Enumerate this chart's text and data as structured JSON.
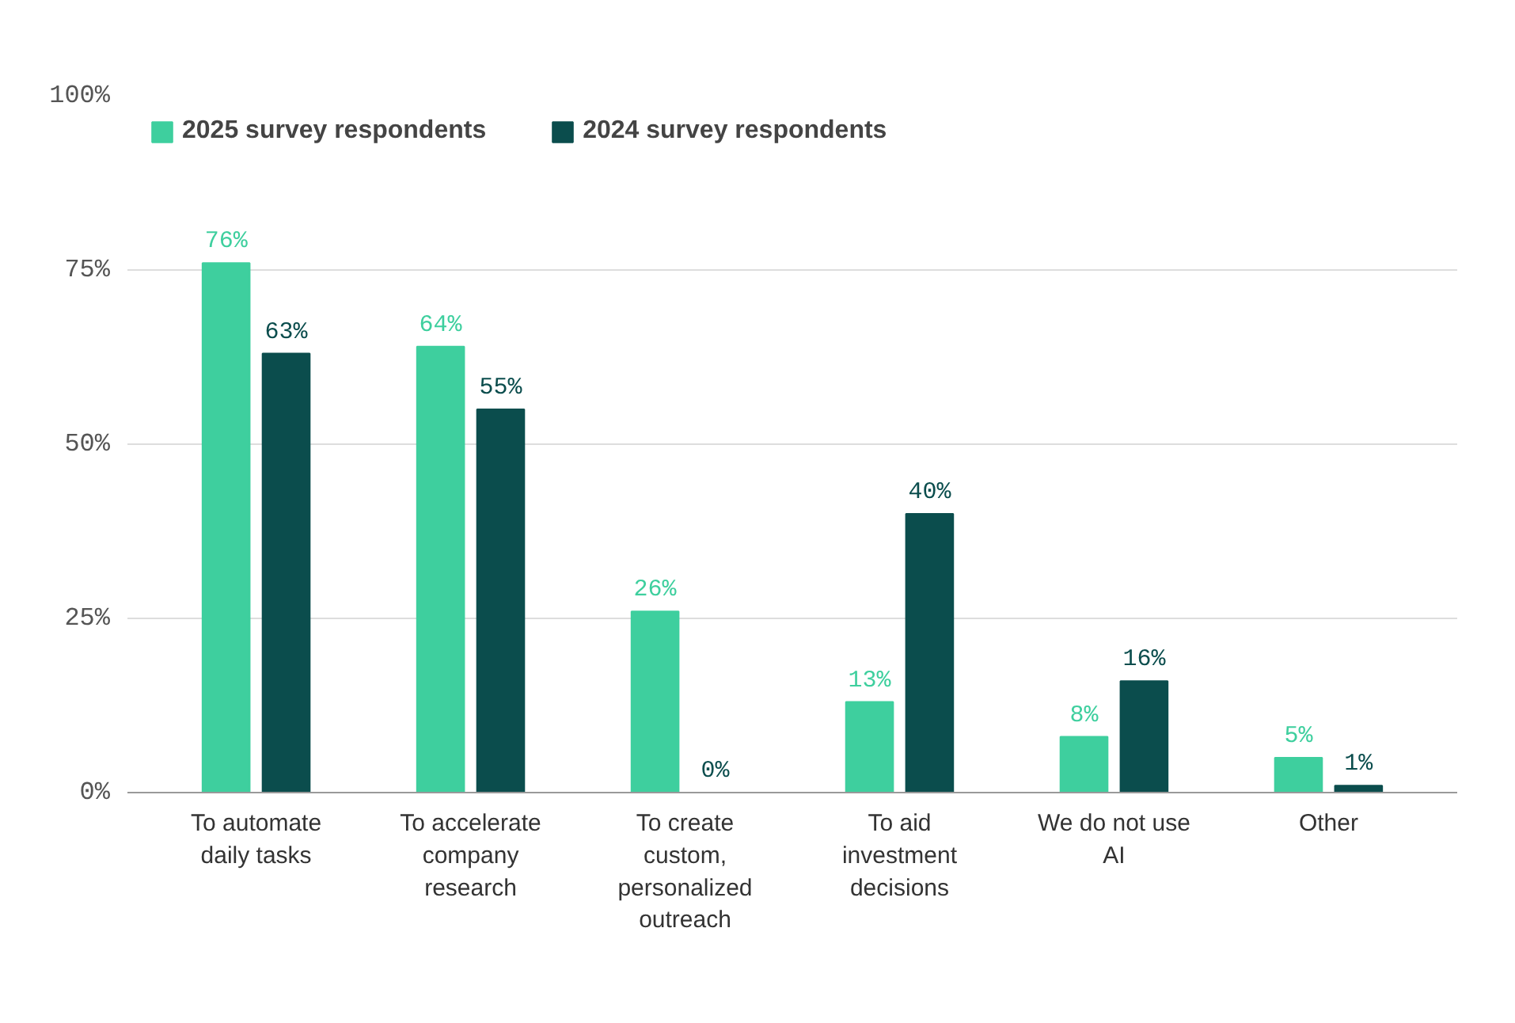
{
  "chart_data": {
    "type": "bar",
    "categories": [
      "To automate daily tasks",
      "To accelerate company research",
      "To create custom, personalized outreach",
      "To aid investment decisions",
      "We do not use AI",
      "Other"
    ],
    "series": [
      {
        "name": "2025 survey respondents",
        "color": "#3ecf9e",
        "values": [
          76,
          64,
          26,
          13,
          8,
          5
        ],
        "value_labels": [
          "76%",
          "64%",
          "26%",
          "13%",
          "8%",
          "5%"
        ]
      },
      {
        "name": "2024 survey respondents",
        "color": "#0b4d4d",
        "values": [
          63,
          55,
          0,
          40,
          16,
          1
        ],
        "value_labels": [
          "63%",
          "55%",
          "0%",
          "40%",
          "16%",
          "1%"
        ]
      }
    ],
    "ylim": [
      0,
      100
    ],
    "yticks": [
      {
        "value": 0,
        "label": "0%"
      },
      {
        "value": 25,
        "label": "25%"
      },
      {
        "value": 50,
        "label": "50%"
      },
      {
        "value": 75,
        "label": "75%"
      },
      {
        "value": 100,
        "label": "100%"
      }
    ],
    "grid": "y",
    "legend": "top left",
    "data_labels": true
  }
}
